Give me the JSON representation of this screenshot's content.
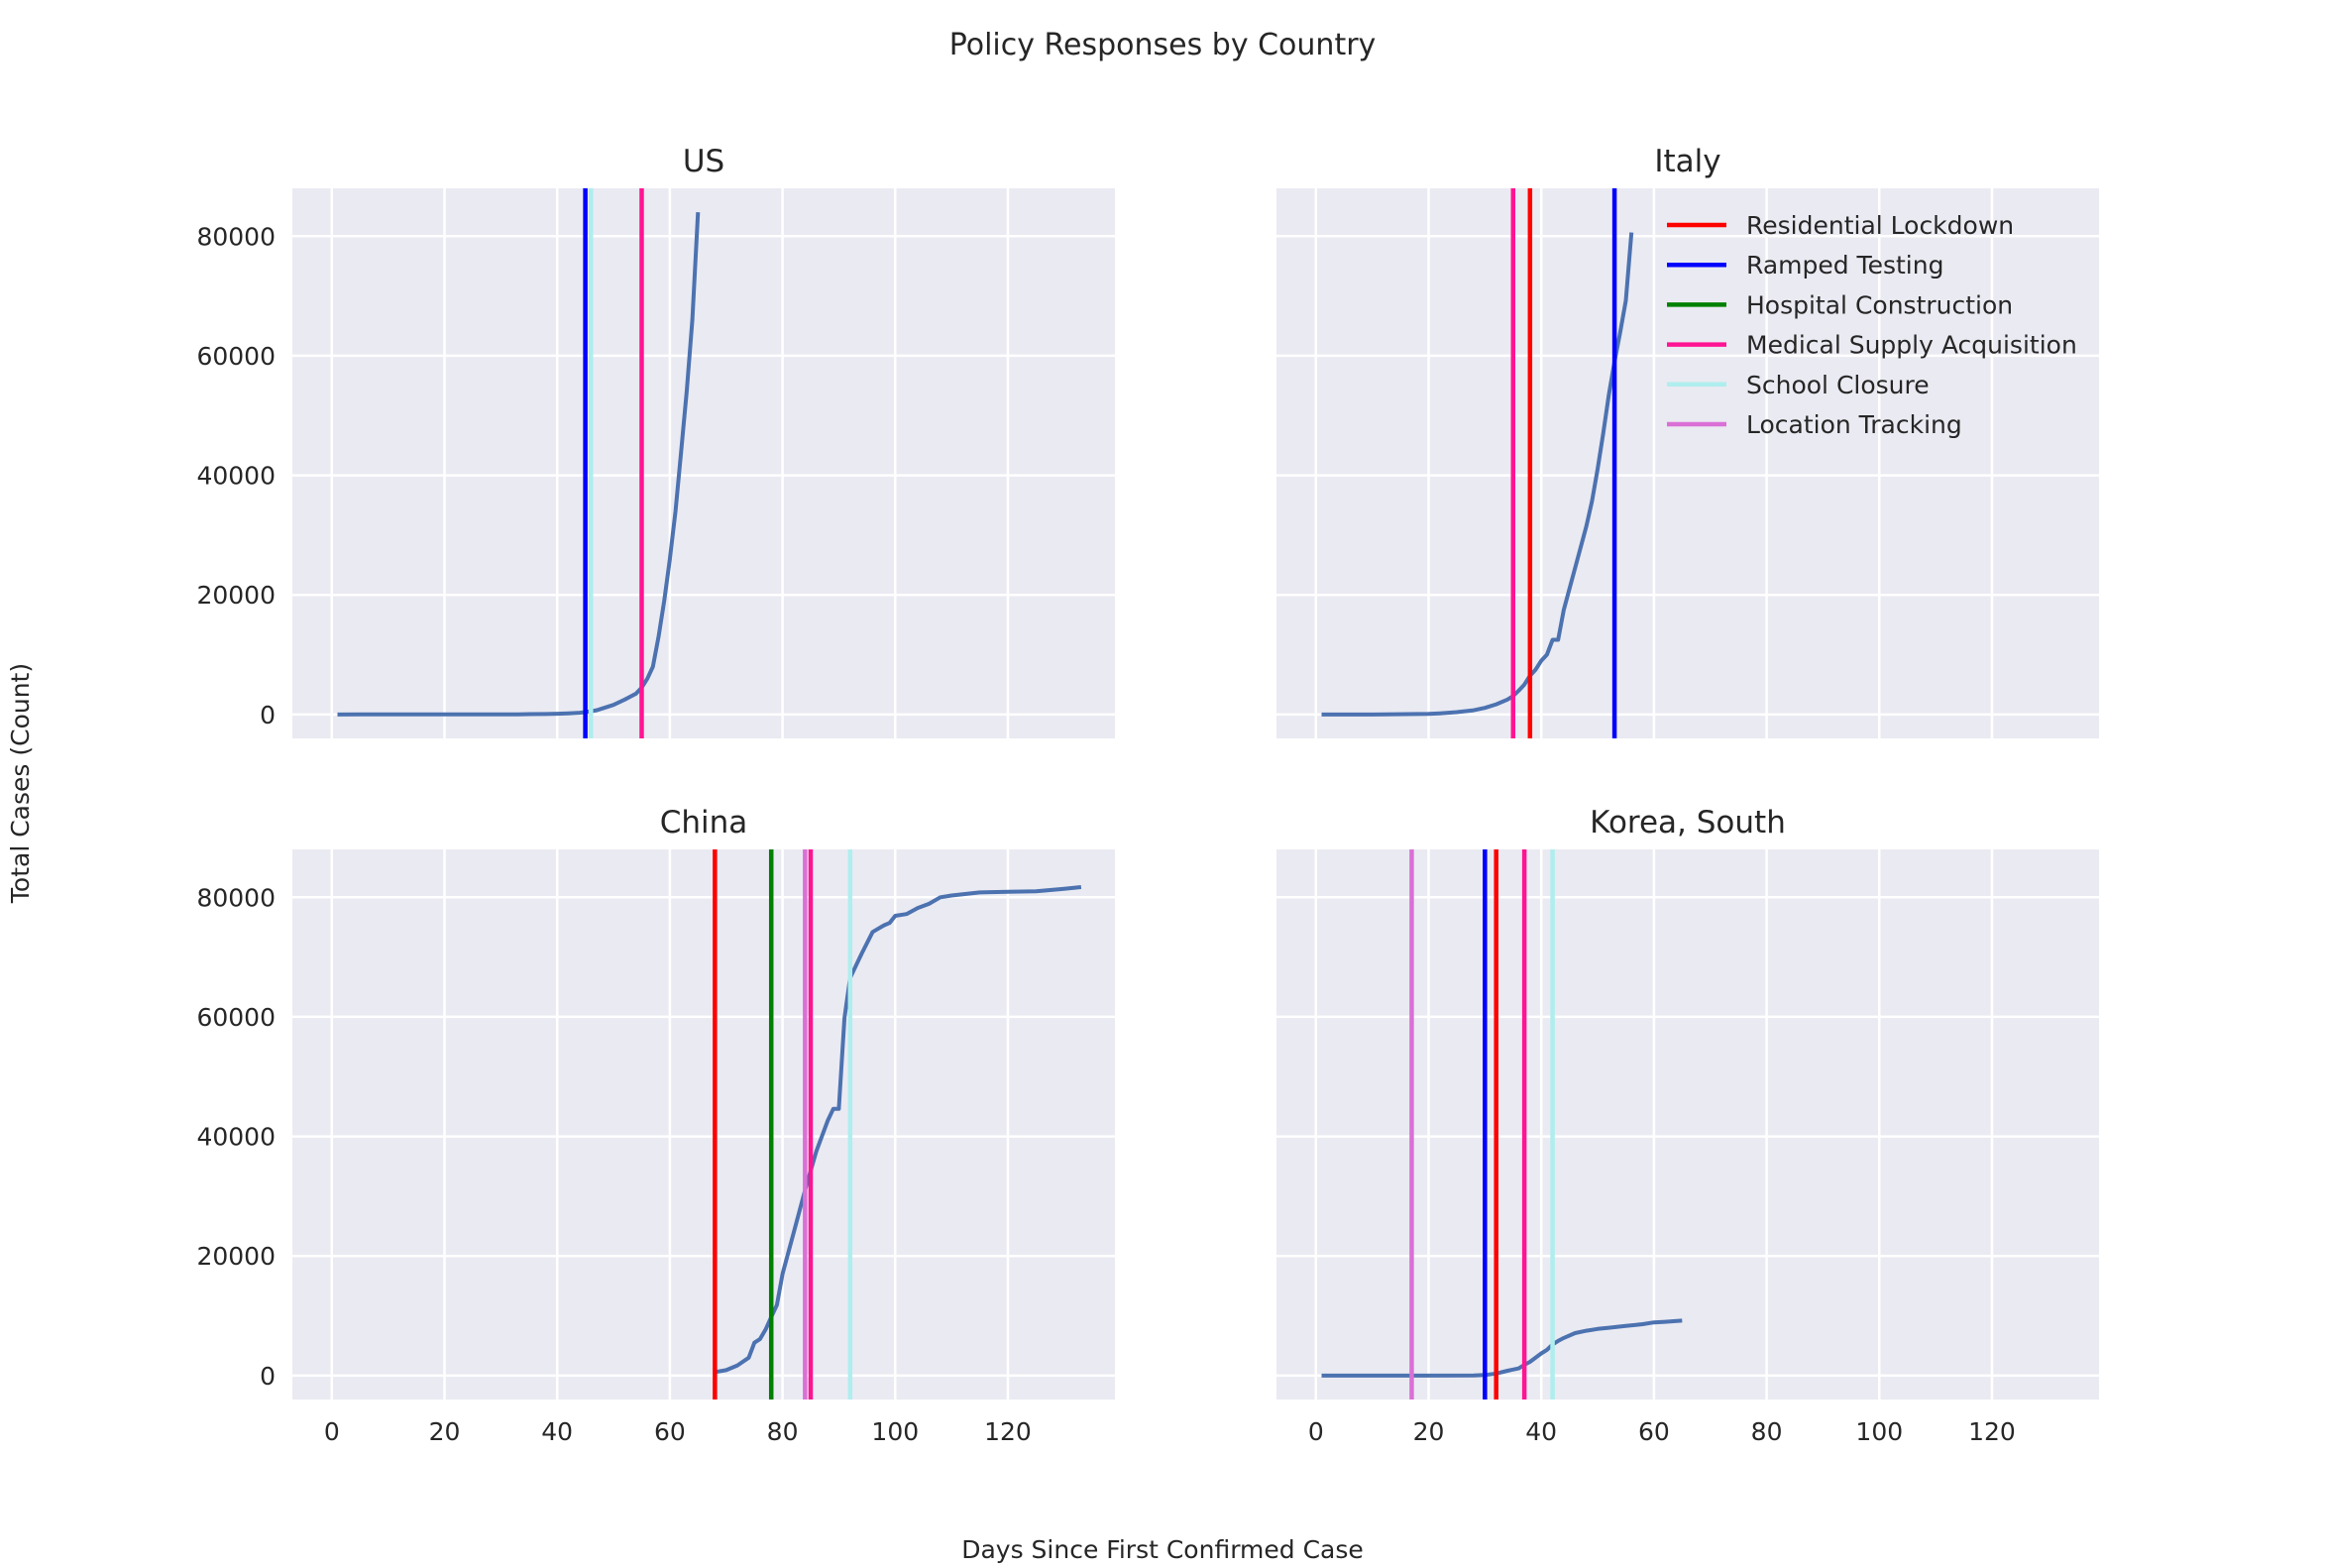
{
  "figure": {
    "suptitle": "Policy Responses by Country",
    "xlabel": "Days Since First Confirmed Case",
    "ylabel": "Total Cases (Count)"
  },
  "colors": {
    "background": "#eaeaf2",
    "grid": "#ffffff",
    "cases_line": "#4c72b0"
  },
  "legend": {
    "placement": "upper-right of Italy panel",
    "entries": [
      {
        "label": "Residential Lockdown",
        "color": "#ff0000"
      },
      {
        "label": "Ramped Testing",
        "color": "#0000ff"
      },
      {
        "label": "Hospital Construction",
        "color": "#008000"
      },
      {
        "label": "Medical Supply Acquisition",
        "color": "#ff1493"
      },
      {
        "label": "School Closure",
        "color": "#afeeee"
      },
      {
        "label": "Location Tracking",
        "color": "#da70d6"
      }
    ]
  },
  "chart_data": {
    "type": "line",
    "xlim": [
      -7,
      139
    ],
    "ylim": [
      -4000,
      88000
    ],
    "xticks": [
      0,
      20,
      40,
      60,
      80,
      100,
      120
    ],
    "yticks": [
      0,
      20000,
      40000,
      60000,
      80000
    ],
    "xtick_labels": [
      "0",
      "20",
      "40",
      "60",
      "80",
      "100",
      "120"
    ],
    "ytick_labels": [
      "0",
      "20000",
      "40000",
      "60000",
      "80000"
    ],
    "grid": true,
    "panels": [
      {
        "title": "US",
        "series": {
          "x": [
            1,
            5,
            10,
            15,
            20,
            25,
            30,
            33,
            35,
            38,
            40,
            42,
            44,
            45,
            47,
            48,
            50,
            52,
            54,
            55,
            56,
            57,
            58,
            59,
            60,
            61,
            62,
            63,
            64,
            65
          ],
          "y": [
            1,
            5,
            10,
            13,
            14,
            15,
            15,
            30,
            60,
            80,
            130,
            200,
            300,
            400,
            700,
            1000,
            1600,
            2500,
            3500,
            4500,
            6000,
            8000,
            13000,
            19000,
            26000,
            34000,
            44000,
            54000,
            66000,
            84000
          ]
        },
        "policies": [
          {
            "policy": "Ramped Testing",
            "day": 45
          },
          {
            "policy": "School Closure",
            "day": 46
          },
          {
            "policy": "Medical Supply Acquisition",
            "day": 55
          }
        ]
      },
      {
        "title": "Italy",
        "series": {
          "x": [
            1,
            10,
            20,
            22,
            25,
            28,
            30,
            32,
            34,
            35,
            36,
            37,
            38,
            39,
            40,
            41,
            42,
            43,
            44,
            45,
            46,
            47,
            48,
            49,
            50,
            51,
            52,
            53,
            54,
            55,
            56
          ],
          "y": [
            0,
            0,
            100,
            200,
            400,
            700,
            1100,
            1700,
            2500,
            3100,
            4000,
            5000,
            6500,
            7500,
            9000,
            10000,
            12500,
            12500,
            17500,
            21000,
            24500,
            28000,
            31500,
            35700,
            41000,
            47000,
            53500,
            59000,
            63900,
            69200,
            80600
          ]
        },
        "policies": [
          {
            "policy": "Medical Supply Acquisition",
            "day": 35
          },
          {
            "policy": "Residential Lockdown",
            "day": 38
          },
          {
            "policy": "Ramped Testing",
            "day": 53
          }
        ]
      },
      {
        "title": "China",
        "series": {
          "x": [
            68,
            70,
            72,
            74,
            75,
            76,
            77,
            78,
            79,
            80,
            82,
            84,
            86,
            88,
            89,
            90,
            91,
            92,
            94,
            96,
            98,
            99,
            100,
            102,
            104,
            106,
            108,
            110,
            115,
            120,
            125,
            130,
            133
          ],
          "y": [
            600,
            900,
            1700,
            3000,
            5500,
            6100,
            7700,
            9800,
            11800,
            17000,
            24000,
            31000,
            37500,
            42600,
            44600,
            44600,
            59800,
            66500,
            70500,
            74200,
            75300,
            75700,
            76900,
            77200,
            78200,
            78900,
            80000,
            80300,
            80800,
            80900,
            81000,
            81400,
            81700
          ]
        },
        "policies": [
          {
            "policy": "Residential Lockdown",
            "day": 68
          },
          {
            "policy": "Hospital Construction",
            "day": 78
          },
          {
            "policy": "Location Tracking",
            "day": 84
          },
          {
            "policy": "Medical Supply Acquisition",
            "day": 85
          },
          {
            "policy": "School Closure",
            "day": 92
          }
        ]
      },
      {
        "title": "Korea, South",
        "series": {
          "x": [
            1,
            10,
            20,
            28,
            30,
            32,
            34,
            36,
            37,
            38,
            40,
            41,
            42,
            43,
            44,
            46,
            48,
            50,
            52,
            55,
            58,
            60,
            62,
            65
          ],
          "y": [
            0,
            0,
            0,
            20,
            100,
            350,
            800,
            1200,
            1800,
            2300,
            3700,
            4300,
            5200,
            5800,
            6300,
            7100,
            7500,
            7800,
            8000,
            8300,
            8600,
            8900,
            9000,
            9200
          ]
        },
        "policies": [
          {
            "policy": "Location Tracking",
            "day": 17
          },
          {
            "policy": "Ramped Testing",
            "day": 30
          },
          {
            "policy": "Residential Lockdown",
            "day": 32
          },
          {
            "policy": "Medical Supply Acquisition",
            "day": 37
          },
          {
            "policy": "School Closure",
            "day": 42
          }
        ]
      }
    ]
  }
}
